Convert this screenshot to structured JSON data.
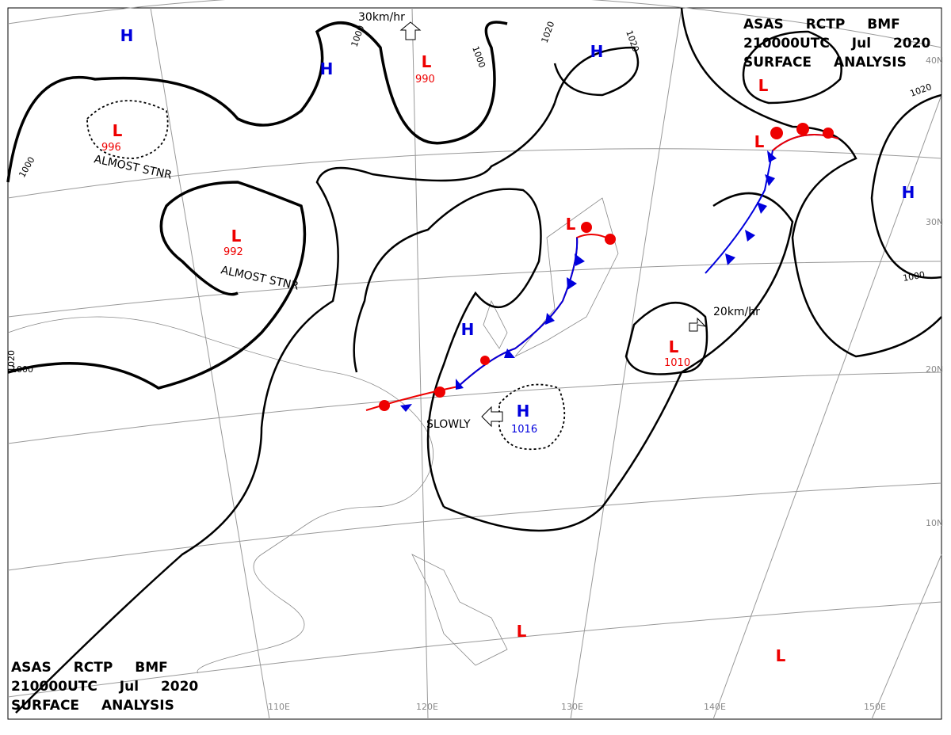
{
  "header_top": {
    "lines": [
      "ASAS RCTP BMF",
      "210000UTC Jul 2020",
      "SURFACE ANALYSIS"
    ]
  },
  "header_bottom": {
    "lines": [
      "ASAS RCTP BMF",
      "210000UTC Jul 2020",
      "SURFACE ANALYSIS"
    ]
  },
  "pressure_systems": [
    {
      "symbol": "L",
      "pressure": 996
    },
    {
      "symbol": "L",
      "pressure": 992
    },
    {
      "symbol": "L",
      "pressure": 990
    },
    {
      "symbol": "L",
      "pressure": 1010
    },
    {
      "symbol": "L"
    },
    {
      "symbol": "L"
    },
    {
      "symbol": "L"
    },
    {
      "symbol": "L"
    },
    {
      "symbol": "L"
    },
    {
      "symbol": "H"
    },
    {
      "symbol": "H"
    },
    {
      "symbol": "H"
    },
    {
      "symbol": "H"
    },
    {
      "symbol": "H"
    },
    {
      "symbol": "H",
      "pressure": 1016
    }
  ],
  "isobar_labels": [
    "1000",
    "1000",
    "1000",
    "1000",
    "1000",
    "1020",
    "1020",
    "1020",
    "1020"
  ],
  "annotations": [
    "ALMOST STNR",
    "ALMOST STNR",
    "SLOWLY",
    "30km/hr",
    "20km/hr"
  ],
  "latitude_labels": [
    "40N",
    "30N",
    "20N",
    "10N"
  ],
  "longitude_labels": [
    "110E",
    "120E",
    "130E",
    "140E",
    "150E"
  ]
}
